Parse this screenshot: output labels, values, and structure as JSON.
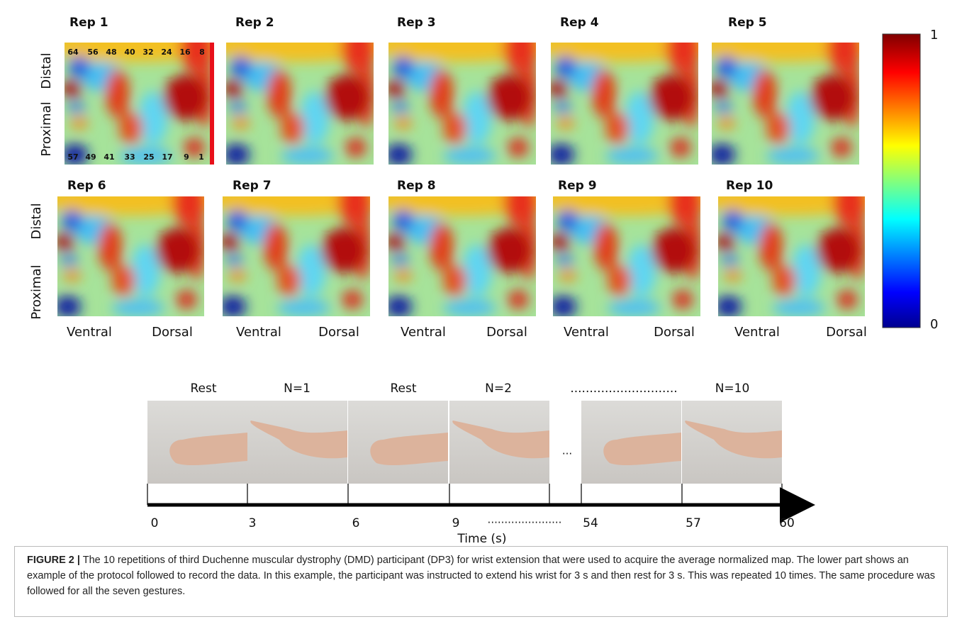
{
  "panels": [
    {
      "title": "Rep 1"
    },
    {
      "title": "Rep 2"
    },
    {
      "title": "Rep 3"
    },
    {
      "title": "Rep 4"
    },
    {
      "title": "Rep 5"
    },
    {
      "title": "Rep 6"
    },
    {
      "title": "Rep 7"
    },
    {
      "title": "Rep 8"
    },
    {
      "title": "Rep 9"
    },
    {
      "title": "Rep 10"
    }
  ],
  "electrodes": {
    "top": [
      "64",
      "56",
      "48",
      "40",
      "32",
      "24",
      "16",
      "8"
    ],
    "bottom": [
      "57",
      "49",
      "41",
      "33",
      "25",
      "17",
      "9",
      "1"
    ]
  },
  "row_labels": {
    "distal": "Distal",
    "proximal": "Proximal"
  },
  "col_labels": {
    "ventral": "Ventral",
    "dorsal": "Dorsal"
  },
  "colorbar": {
    "max": 1,
    "min": 0
  },
  "protocol": {
    "phases": [
      "Rest",
      "N=1",
      "Rest",
      "N=2",
      "............................",
      "N=10"
    ],
    "gap": "...",
    "ticks": [
      0,
      3,
      6,
      9,
      54,
      57,
      60
    ],
    "tick_gap": "......................",
    "axis_label": "Time (s)"
  },
  "caption": {
    "label": "FIGURE 2 |",
    "text": "The 10 repetitions of third Duchenne muscular dystrophy (DMD) participant (DP3) for wrist extension that were used to acquire the average normalized map. The lower part shows an example of the protocol followed to record the data. In this example, the participant was instructed to extend his wrist for 3 s and then rest for 3 s. This was repeated 10 times. The same procedure was followed for all the seven gestures."
  }
}
